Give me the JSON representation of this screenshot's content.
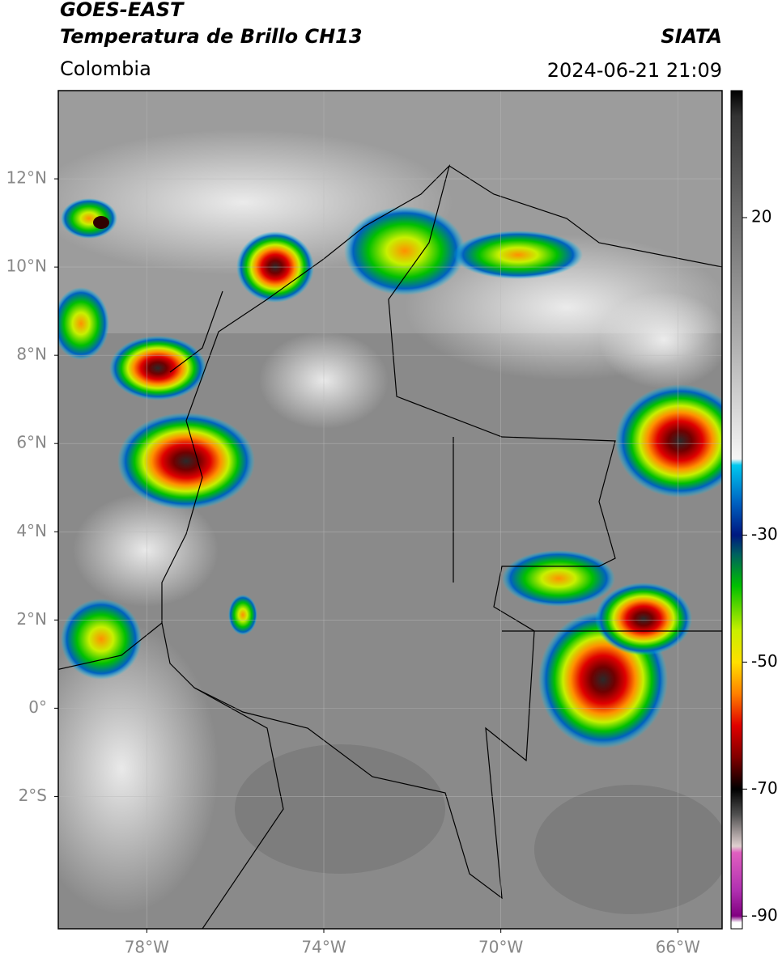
{
  "chart_data": {
    "type": "map",
    "title": "GOES-EAST",
    "subtitle": "Temperatura de Brillo CH13",
    "region": "Colombia",
    "source": "SIATA",
    "timestamp": "2024-06-21 21:09",
    "xlim": [
      -80,
      -65
    ],
    "ylim": [
      -5,
      14
    ],
    "xticks": [
      {
        "value": -78,
        "label": "78°W"
      },
      {
        "value": -74,
        "label": "74°W"
      },
      {
        "value": -70,
        "label": "70°W"
      },
      {
        "value": -66,
        "label": "66°W"
      }
    ],
    "yticks": [
      {
        "value": 12,
        "label": "12°N"
      },
      {
        "value": 10,
        "label": "10°N"
      },
      {
        "value": 8,
        "label": "8°N"
      },
      {
        "value": 6,
        "label": "6°N"
      },
      {
        "value": 4,
        "label": "4°N"
      },
      {
        "value": 2,
        "label": "2°N"
      },
      {
        "value": 0,
        "label": "0°"
      },
      {
        "value": -2,
        "label": "2°S"
      }
    ],
    "grid": true,
    "colorbar": {
      "clim": [
        -92,
        40
      ],
      "ticks": [
        20,
        -30,
        -50,
        -70,
        -90
      ],
      "colorscale": [
        [
          40,
          "#000000"
        ],
        [
          36,
          "#333333"
        ],
        [
          20,
          "#6e6e6e"
        ],
        [
          0,
          "#b0b0b0"
        ],
        [
          -18,
          "#f5f5f5"
        ],
        [
          -19,
          "#00c8f0"
        ],
        [
          -25,
          "#0060c0"
        ],
        [
          -30,
          "#001880"
        ],
        [
          -33,
          "#006060"
        ],
        [
          -38,
          "#00c000"
        ],
        [
          -45,
          "#c8f000"
        ],
        [
          -50,
          "#ffe000"
        ],
        [
          -55,
          "#ff8000"
        ],
        [
          -60,
          "#e00000"
        ],
        [
          -65,
          "#800000"
        ],
        [
          -70,
          "#000000"
        ],
        [
          -74,
          "#505050"
        ],
        [
          -79,
          "#e0d0d0"
        ],
        [
          -80,
          "#e060c0"
        ],
        [
          -86,
          "#b030b0"
        ],
        [
          -90,
          "#800080"
        ],
        [
          -91,
          "#ffffff"
        ]
      ]
    }
  }
}
